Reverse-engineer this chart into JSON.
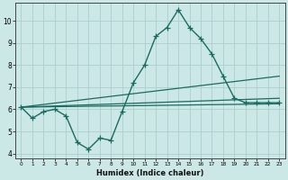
{
  "xlabel": "Humidex (Indice chaleur)",
  "bg_color": "#cce8e6",
  "grid_color": "#aacfcd",
  "line_color": "#1a6b60",
  "xlim": [
    -0.5,
    23.5
  ],
  "ylim": [
    3.8,
    10.8
  ],
  "yticks": [
    4,
    5,
    6,
    7,
    8,
    9,
    10
  ],
  "xticks": [
    0,
    1,
    2,
    3,
    4,
    5,
    6,
    7,
    8,
    9,
    10,
    11,
    12,
    13,
    14,
    15,
    16,
    17,
    18,
    19,
    20,
    21,
    22,
    23
  ],
  "series_main": {
    "x": [
      0,
      1,
      2,
      3,
      4,
      5,
      6,
      7,
      8,
      9,
      10,
      11,
      12,
      13,
      14,
      15,
      16,
      17,
      18,
      19,
      20,
      21,
      22,
      23
    ],
    "y": [
      6.1,
      5.6,
      5.9,
      6.0,
      5.7,
      4.5,
      4.2,
      4.7,
      4.6,
      5.9,
      7.2,
      8.0,
      9.3,
      9.7,
      10.5,
      9.7,
      9.2,
      8.5,
      7.5,
      6.5,
      6.3,
      6.3,
      6.3,
      6.3
    ]
  },
  "series_flat": [
    {
      "x": [
        0,
        23
      ],
      "y": [
        6.1,
        6.25
      ]
    },
    {
      "x": [
        0,
        23
      ],
      "y": [
        6.1,
        6.5
      ]
    },
    {
      "x": [
        0,
        23
      ],
      "y": [
        6.1,
        7.5
      ]
    }
  ]
}
